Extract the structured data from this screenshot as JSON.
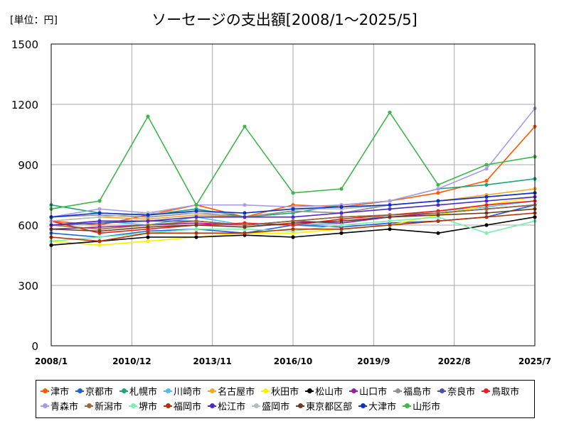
{
  "unit_label": "[単位：円]",
  "chart_data": {
    "type": "line",
    "title": "ソーセージの支出額[2008/1～2025/5]",
    "xlabel": "",
    "ylabel": "",
    "ylim": [
      0,
      1500
    ],
    "yticks": [
      0,
      300,
      600,
      900,
      1200,
      1500
    ],
    "xlim": [
      "2008/1",
      "2025/7"
    ],
    "xticks": [
      "2008/1",
      "2010/12",
      "2013/11",
      "2016/10",
      "2019/9",
      "2022/8",
      "2025/7"
    ],
    "grid": true,
    "legend_position": "bottom",
    "series": [
      {
        "name": "津市",
        "color": "#ff5a00",
        "values": [
          620,
          600,
          650,
          700,
          640,
          700,
          690,
          720,
          760,
          820,
          1090
        ]
      },
      {
        "name": "京都市",
        "color": "#1f5fdc",
        "values": [
          560,
          540,
          570,
          580,
          560,
          600,
          590,
          610,
          620,
          640,
          700
        ]
      },
      {
        "name": "札幌市",
        "color": "#1fa37a",
        "values": [
          700,
          660,
          650,
          680,
          640,
          660,
          700,
          720,
          780,
          800,
          830
        ]
      },
      {
        "name": "川崎市",
        "color": "#4ebcf0",
        "values": [
          600,
          620,
          600,
          640,
          600,
          600,
          610,
          650,
          670,
          690,
          720
        ]
      },
      {
        "name": "名古屋市",
        "color": "#f5a623",
        "values": [
          620,
          640,
          630,
          650,
          640,
          670,
          660,
          700,
          720,
          750,
          780
        ]
      },
      {
        "name": "秋田市",
        "color": "#ffee00",
        "values": [
          520,
          500,
          520,
          540,
          560,
          560,
          580,
          600,
          650,
          700,
          740
        ]
      },
      {
        "name": "松山市",
        "color": "#000000",
        "values": [
          500,
          520,
          540,
          540,
          550,
          540,
          560,
          580,
          560,
          600,
          640
        ]
      },
      {
        "name": "山口市",
        "color": "#9b1fa3",
        "values": [
          580,
          590,
          600,
          610,
          600,
          620,
          610,
          640,
          660,
          680,
          700
        ]
      },
      {
        "name": "福島市",
        "color": "#8c9296",
        "values": [
          640,
          650,
          640,
          660,
          640,
          670,
          660,
          700,
          720,
          740,
          760
        ]
      },
      {
        "name": "奈良市",
        "color": "#4a4fa8",
        "values": [
          600,
          610,
          620,
          620,
          600,
          620,
          640,
          650,
          660,
          680,
          700
        ]
      },
      {
        "name": "鳥取市",
        "color": "#ef1c1c",
        "values": [
          620,
          560,
          580,
          600,
          610,
          600,
          630,
          650,
          670,
          700,
          720
        ]
      },
      {
        "name": "青森市",
        "color": "#a99be6",
        "values": [
          640,
          680,
          660,
          700,
          700,
          690,
          700,
          720,
          780,
          880,
          1180
        ]
      },
      {
        "name": "新潟市",
        "color": "#9a6a3a",
        "values": [
          600,
          580,
          600,
          620,
          600,
          620,
          640,
          650,
          660,
          680,
          700
        ]
      },
      {
        "name": "堺市",
        "color": "#78f0b0",
        "values": [
          520,
          540,
          560,
          580,
          580,
          570,
          600,
          620,
          640,
          560,
          620
        ]
      },
      {
        "name": "福岡市",
        "color": "#b53000",
        "values": [
          540,
          520,
          560,
          560,
          560,
          580,
          580,
          600,
          620,
          640,
          660
        ]
      },
      {
        "name": "松江市",
        "color": "#4a2ac8",
        "values": [
          600,
          620,
          620,
          640,
          640,
          640,
          660,
          680,
          700,
          720,
          740
        ]
      },
      {
        "name": "盛岡市",
        "color": "#b7bcc0",
        "values": [
          620,
          640,
          660,
          660,
          660,
          680,
          680,
          700,
          720,
          740,
          760
        ]
      },
      {
        "name": "東京都区部",
        "color": "#6e3a1c",
        "values": [
          580,
          570,
          590,
          600,
          590,
          610,
          620,
          640,
          650,
          660,
          680
        ]
      },
      {
        "name": "大津市",
        "color": "#0a32c8",
        "values": [
          640,
          660,
          650,
          670,
          660,
          680,
          690,
          700,
          720,
          740,
          760
        ]
      },
      {
        "name": "山形市",
        "color": "#3fb54a",
        "values": [
          680,
          720,
          1140,
          700,
          1090,
          760,
          780,
          1160,
          800,
          900,
          940
        ]
      }
    ]
  }
}
